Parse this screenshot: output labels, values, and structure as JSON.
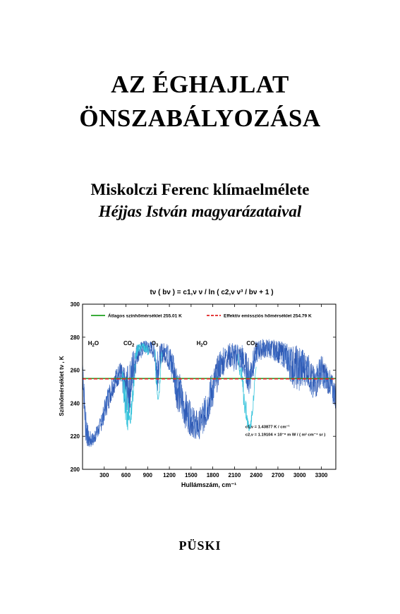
{
  "cover": {
    "title_line1": "AZ ÉGHAJLAT",
    "title_line2": "ÖNSZABÁLYOZÁSA",
    "subtitle": "Miskolczi Ferenc klímaelmélete",
    "subtitle_italic": "Héjjas István magyarázataival",
    "publisher": "PÜSKI"
  },
  "chart_data": {
    "type": "line",
    "title": "tν ( bν ) = c1,ν ν / ln ( c2,ν ν³ / bν + 1 )",
    "xlabel": "Hullámszám, cm⁻¹",
    "ylabel": "Színhőmérséklet tν , K",
    "xlim": [
      0,
      3500
    ],
    "ylim": [
      200,
      300
    ],
    "xticks": [
      "300",
      "600",
      "900",
      "1200",
      "1500",
      "1800",
      "2100",
      "2400",
      "2700",
      "3000",
      "3300"
    ],
    "yticks": [
      "200",
      "220",
      "240",
      "260",
      "280",
      "300"
    ],
    "legend_placement": "top",
    "series": [
      {
        "name": "Átlagos színhőmérséklet 255.01 K",
        "style": "solid",
        "color": "#1fa01f",
        "y": 255.01
      },
      {
        "name": "Effektív emissziós hőmérséklet 254.79 K",
        "style": "dashed",
        "color": "#e02020",
        "y": 254.79
      }
    ],
    "spectrum_envelope": {
      "x": [
        0,
        40,
        80,
        150,
        250,
        350,
        450,
        520,
        560,
        600,
        650,
        700,
        760,
        850,
        950,
        1000,
        1030,
        1060,
        1100,
        1150,
        1200,
        1250,
        1300,
        1400,
        1500,
        1600,
        1700,
        1800,
        1900,
        2000,
        2050,
        2100,
        2150,
        2200,
        2250,
        2300,
        2350,
        2400,
        2500,
        2600,
        2700,
        2800,
        2900,
        3000,
        3100,
        3200,
        3300,
        3400,
        3500
      ],
      "upper": [
        268,
        240,
        224,
        222,
        232,
        250,
        260,
        266,
        262,
        262,
        264,
        274,
        277,
        278,
        278,
        277,
        270,
        275,
        277,
        277,
        276,
        272,
        265,
        250,
        240,
        235,
        245,
        262,
        272,
        276,
        277,
        276,
        277,
        276,
        272,
        268,
        272,
        278,
        279,
        279,
        278,
        277,
        276,
        275,
        272,
        262,
        270,
        262,
        253
      ],
      "lower": [
        250,
        212,
        210,
        213,
        220,
        232,
        245,
        250,
        240,
        230,
        228,
        245,
        262,
        268,
        268,
        262,
        240,
        255,
        262,
        262,
        255,
        248,
        232,
        222,
        216,
        214,
        220,
        232,
        250,
        258,
        258,
        256,
        258,
        255,
        250,
        240,
        250,
        262,
        265,
        265,
        262,
        258,
        245,
        242,
        248,
        235,
        248,
        242,
        233
      ]
    },
    "cyan_bands": [
      {
        "x": [
          550,
          590,
          630,
          660,
          700,
          730
        ],
        "upper": [
          262,
          255,
          245,
          235,
          255,
          268
        ],
        "lower": [
          248,
          225,
          216,
          222,
          240,
          258
        ]
      },
      {
        "x": [
          730,
          760,
          800,
          850,
          880,
          920
        ],
        "upper": [
          272,
          276,
          277,
          277,
          276,
          275
        ],
        "lower": [
          262,
          268,
          270,
          270,
          268,
          266
        ]
      },
      {
        "x": [
          1000,
          1020,
          1040,
          1060,
          1080,
          1100
        ],
        "upper": [
          275,
          260,
          245,
          250,
          265,
          276
        ],
        "lower": [
          265,
          245,
          238,
          240,
          255,
          268
        ]
      },
      {
        "x": [
          2150,
          2200,
          2250,
          2300,
          2330,
          2360,
          2400
        ],
        "upper": [
          272,
          262,
          245,
          228,
          232,
          245,
          268
        ],
        "lower": [
          262,
          245,
          228,
          220,
          224,
          236,
          255
        ]
      }
    ],
    "annotations": [
      {
        "base": "H",
        "sub": "2",
        "rest": "O",
        "x": 150,
        "y": 276
      },
      {
        "base": "CO",
        "sub": "2",
        "rest": "",
        "x": 640,
        "y": 276
      },
      {
        "base": "O",
        "sub": "3",
        "rest": "",
        "x": 1000,
        "y": 276
      },
      {
        "base": "H",
        "sub": "2",
        "rest": "O",
        "x": 1650,
        "y": 276
      },
      {
        "base": "CO",
        "sub": "2",
        "rest": "",
        "x": 2340,
        "y": 276
      }
    ],
    "constants": [
      {
        "label": "c1,ν = 1.43877 K / cm⁻¹"
      },
      {
        "label": "c2,ν = 1.19104 × 10⁻⁸ m W / ( m² cm⁻⁴ sr )"
      }
    ]
  }
}
